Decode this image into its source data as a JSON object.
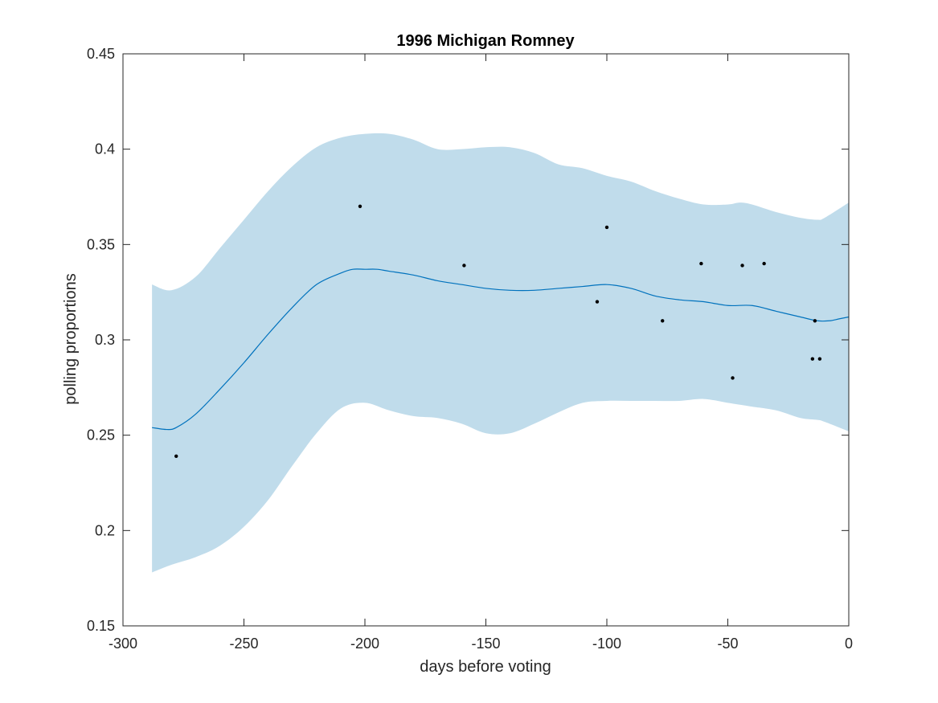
{
  "chart_data": {
    "type": "line",
    "title": "1996 Michigan Romney",
    "xlabel": "days before voting",
    "ylabel": "polling proportions",
    "xlim": [
      -300,
      0
    ],
    "ylim": [
      0.15,
      0.45
    ],
    "xticks": [
      -300,
      -250,
      -200,
      -150,
      -100,
      -50,
      0
    ],
    "yticks": [
      0.15,
      0.2,
      0.25,
      0.3,
      0.35,
      0.4,
      0.45
    ],
    "xtick_labels": [
      "-300",
      "-250",
      "-200",
      "-150",
      "-100",
      "-50",
      "0"
    ],
    "ytick_labels": [
      "0.15",
      "0.2",
      "0.25",
      "0.3",
      "0.35",
      "0.4",
      "0.45"
    ],
    "grid": false,
    "colors": {
      "band": "#c0dceb",
      "line": "#0072bd",
      "points": "#000000",
      "axes": "#262626"
    },
    "band": {
      "x": [
        -288,
        -280,
        -270,
        -260,
        -250,
        -240,
        -230,
        -220,
        -210,
        -200,
        -190,
        -180,
        -170,
        -160,
        -150,
        -140,
        -130,
        -120,
        -110,
        -100,
        -90,
        -80,
        -70,
        -60,
        -50,
        -45,
        -40,
        -30,
        -20,
        -13,
        -10,
        0
      ],
      "upper": [
        0.329,
        0.326,
        0.333,
        0.348,
        0.363,
        0.378,
        0.391,
        0.401,
        0.406,
        0.408,
        0.408,
        0.405,
        0.4,
        0.4,
        0.401,
        0.401,
        0.398,
        0.392,
        0.39,
        0.386,
        0.383,
        0.378,
        0.374,
        0.371,
        0.371,
        0.372,
        0.371,
        0.367,
        0.364,
        0.363,
        0.364,
        0.372
      ],
      "lower": [
        0.178,
        0.182,
        0.186,
        0.192,
        0.202,
        0.216,
        0.234,
        0.251,
        0.264,
        0.267,
        0.263,
        0.26,
        0.259,
        0.256,
        0.251,
        0.251,
        0.256,
        0.262,
        0.267,
        0.268,
        0.268,
        0.268,
        0.268,
        0.269,
        0.267,
        0.266,
        0.265,
        0.263,
        0.259,
        0.258,
        0.257,
        0.252
      ]
    },
    "series": [
      {
        "type": "line",
        "x": [
          -288,
          -282,
          -278,
          -270,
          -260,
          -250,
          -240,
          -230,
          -220,
          -210,
          -205,
          -200,
          -195,
          -190,
          -180,
          -170,
          -160,
          -150,
          -140,
          -130,
          -120,
          -110,
          -100,
          -90,
          -80,
          -70,
          -60,
          -50,
          -40,
          -30,
          -20,
          -13,
          -8,
          -4,
          0
        ],
        "y": [
          0.254,
          0.253,
          0.254,
          0.261,
          0.274,
          0.288,
          0.303,
          0.317,
          0.329,
          0.335,
          0.337,
          0.337,
          0.337,
          0.336,
          0.334,
          0.331,
          0.329,
          0.327,
          0.326,
          0.326,
          0.327,
          0.328,
          0.329,
          0.327,
          0.323,
          0.321,
          0.32,
          0.318,
          0.318,
          0.315,
          0.312,
          0.31,
          0.31,
          0.311,
          0.312
        ]
      },
      {
        "type": "scatter",
        "x": [
          -278,
          -202,
          -159,
          -104,
          -100,
          -77,
          -61,
          -48,
          -44,
          -35,
          -15,
          -14,
          -12
        ],
        "y": [
          0.239,
          0.37,
          0.339,
          0.32,
          0.359,
          0.31,
          0.34,
          0.28,
          0.339,
          0.34,
          0.29,
          0.31,
          0.29
        ]
      }
    ]
  }
}
